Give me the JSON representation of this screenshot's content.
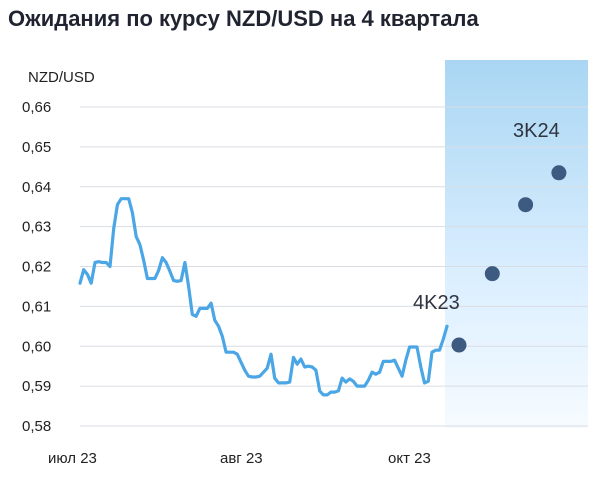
{
  "chart_data": {
    "type": "line",
    "title": "Ожидания по курсу NZD/USD на 4 квартала",
    "ylabel": "NZD/USD",
    "ylim": [
      0.58,
      0.66
    ],
    "yticks": [
      "0,58",
      "0,59",
      "0,60",
      "0,61",
      "0,62",
      "0,63",
      "0,64",
      "0,65",
      "0,66"
    ],
    "xtick_labels": [
      "июл 23",
      "авг 23",
      "окт 23"
    ],
    "grid": true,
    "forecast_band": true,
    "series": [
      {
        "style": "line",
        "color": "#4ba6e6",
        "values": [
          0.6158,
          0.6192,
          0.618,
          0.6158,
          0.621,
          0.6212,
          0.621,
          0.621,
          0.62,
          0.6295,
          0.6355,
          0.637,
          0.637,
          0.637,
          0.6335,
          0.6275,
          0.6255,
          0.6215,
          0.617,
          0.617,
          0.617,
          0.619,
          0.6222,
          0.621,
          0.6188,
          0.6165,
          0.6163,
          0.6165,
          0.621,
          0.615,
          0.608,
          0.6075,
          0.6095,
          0.6095,
          0.6095,
          0.6108,
          0.6065,
          0.605,
          0.6025,
          0.5985,
          0.5985,
          0.5985,
          0.598,
          0.596,
          0.594,
          0.5925,
          0.5923,
          0.5923,
          0.5925,
          0.5935,
          0.5945,
          0.598,
          0.592,
          0.5908,
          0.5908,
          0.5908,
          0.591,
          0.5972,
          0.5955,
          0.5968,
          0.5948,
          0.595,
          0.5948,
          0.594,
          0.5888,
          0.5878,
          0.5878,
          0.5885,
          0.5885,
          0.5888,
          0.592,
          0.591,
          0.5918,
          0.5912,
          0.59,
          0.59,
          0.59,
          0.5915,
          0.5935,
          0.593,
          0.5935,
          0.5962,
          0.5962,
          0.5962,
          0.5965,
          0.5945,
          0.5925,
          0.5965,
          0.5998,
          0.5998,
          0.5998,
          0.5948,
          0.5908,
          0.5912,
          0.5985,
          0.599,
          0.599,
          0.6018,
          0.605
        ]
      },
      {
        "style": "points",
        "color": "#3d5a80",
        "values": [
          0.6003,
          0.6182,
          0.6355,
          0.6435
        ]
      }
    ],
    "annotations": [
      {
        "text": "4K23",
        "x": 2024.0,
        "y": 0.6093
      },
      {
        "text": "3K24",
        "x": 2024.0,
        "y": 0.6525
      }
    ]
  }
}
